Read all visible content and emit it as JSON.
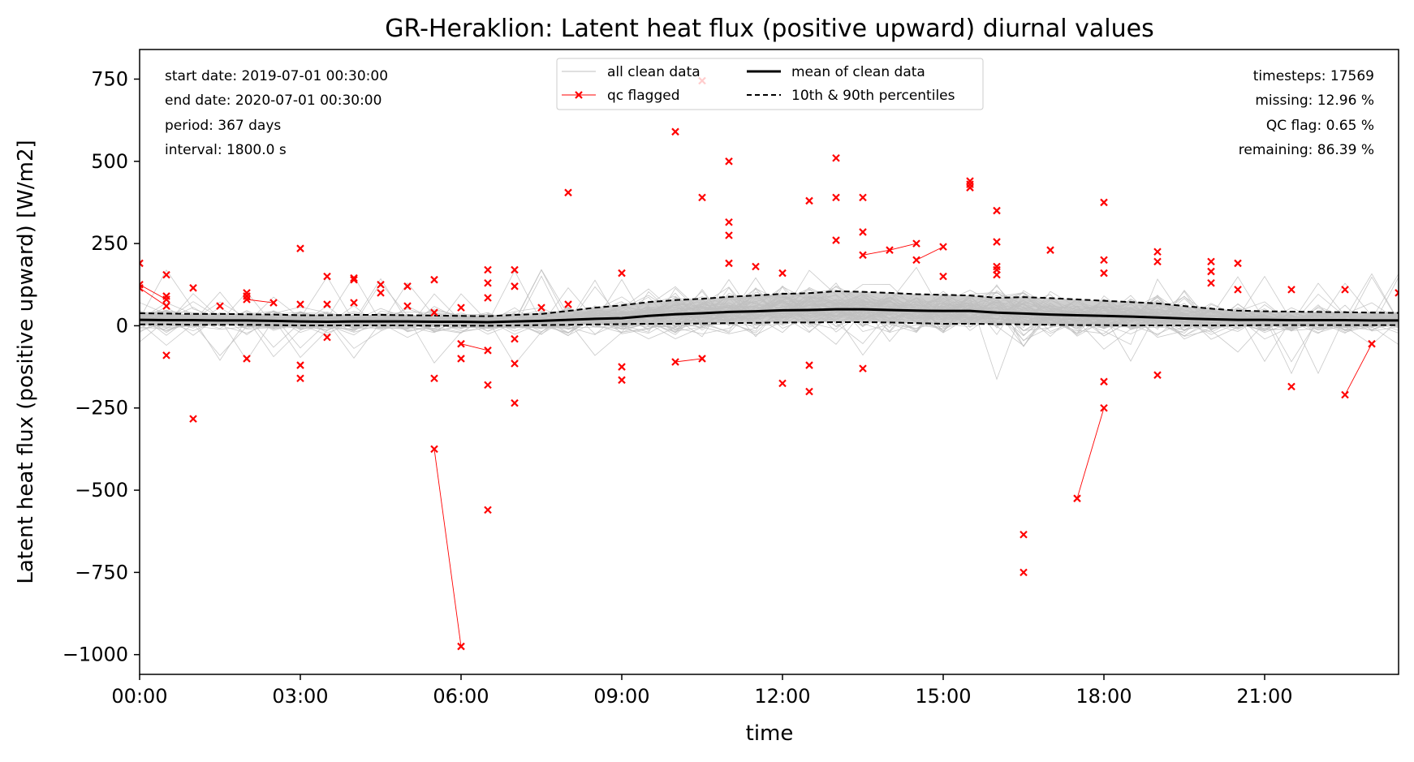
{
  "chart_data": {
    "type": "line",
    "title": "GR-Heraklion: Latent heat flux (positive upward) diurnal values",
    "xlabel": "time",
    "ylabel": "Latent heat flux (positive upward) [W/m2]",
    "xlim": [
      0,
      23.5
    ],
    "ylim": [
      -1060,
      840
    ],
    "x_ticks": [
      0,
      3,
      6,
      9,
      12,
      15,
      18,
      21
    ],
    "x_tick_labels": [
      "00:00",
      "03:00",
      "06:00",
      "09:00",
      "12:00",
      "15:00",
      "18:00",
      "21:00"
    ],
    "y_ticks": [
      750,
      500,
      250,
      0,
      -250,
      -500,
      -750,
      -1000
    ],
    "y_tick_labels": [
      "750",
      "500",
      "250",
      "0",
      "−250",
      "−500",
      "−750",
      "−1000"
    ],
    "grid": false,
    "legend_position": "top-center",
    "legend": {
      "clean": "all clean data",
      "flag": "qc flagged",
      "mean": "mean of clean data",
      "pct": "10th & 90th percentiles"
    },
    "info_left": [
      "start date: 2019-07-01 00:30:00",
      "end date: 2020-07-01 00:30:00",
      "period: 367 days",
      "interval: 1800.0 s"
    ],
    "info_right": [
      "timesteps: 17569",
      "missing: 12.96 %",
      "QC flag: 0.65 %",
      "remaining: 86.39 %"
    ],
    "colors": {
      "clean": "#bfbfbf",
      "flag": "#ff0000",
      "mean": "#000000",
      "pct": "#000000",
      "band": "#bfbfbf"
    },
    "x": [
      0,
      0.5,
      1,
      1.5,
      2,
      2.5,
      3,
      3.5,
      4,
      4.5,
      5,
      5.5,
      6,
      6.5,
      7,
      7.5,
      8,
      8.5,
      9,
      9.5,
      10,
      10.5,
      11,
      11.5,
      12,
      12.5,
      13,
      13.5,
      14,
      14.5,
      15,
      15.5,
      16,
      16.5,
      17,
      17.5,
      18,
      18.5,
      19,
      19.5,
      20,
      20.5,
      21,
      21.5,
      22,
      22.5,
      23,
      23.5
    ],
    "series": [
      {
        "name": "mean of clean data",
        "style": "solid",
        "values": [
          18,
          17,
          17,
          16,
          16,
          15,
          13,
          12,
          13,
          13,
          13,
          12,
          12,
          11,
          13,
          15,
          18,
          21,
          23,
          30,
          35,
          38,
          42,
          44,
          47,
          48,
          50,
          50,
          48,
          46,
          45,
          45,
          40,
          37,
          34,
          32,
          30,
          28,
          25,
          22,
          20,
          18,
          18,
          17,
          17,
          17,
          16,
          16
        ]
      },
      {
        "name": "90th percentile",
        "style": "dashed",
        "values": [
          38,
          37,
          36,
          36,
          35,
          34,
          32,
          32,
          33,
          33,
          32,
          31,
          30,
          29,
          33,
          36,
          45,
          55,
          62,
          72,
          78,
          82,
          88,
          92,
          97,
          99,
          105,
          103,
          100,
          96,
          94,
          92,
          85,
          87,
          84,
          80,
          76,
          72,
          68,
          60,
          52,
          46,
          44,
          43,
          42,
          41,
          40,
          39
        ]
      },
      {
        "name": "10th percentile",
        "style": "dashed",
        "values": [
          4,
          4,
          3,
          3,
          3,
          2,
          1,
          1,
          1,
          1,
          1,
          0,
          0,
          0,
          1,
          2,
          3,
          4,
          5,
          6,
          6,
          7,
          8,
          9,
          10,
          10,
          11,
          11,
          10,
          8,
          6,
          6,
          5,
          4,
          3,
          2,
          2,
          1,
          1,
          1,
          1,
          1,
          2,
          2,
          2,
          2,
          2,
          2
        ]
      }
    ],
    "qc_flagged_points": [
      [
        0,
        190
      ],
      [
        0,
        125
      ],
      [
        0,
        115
      ],
      [
        0.5,
        155
      ],
      [
        0.5,
        90
      ],
      [
        0.5,
        80
      ],
      [
        0.5,
        60
      ],
      [
        0.5,
        -90
      ],
      [
        1,
        115
      ],
      [
        1,
        -283
      ],
      [
        1.5,
        60
      ],
      [
        2,
        100
      ],
      [
        2,
        90
      ],
      [
        2,
        80
      ],
      [
        2,
        -100
      ],
      [
        2.5,
        70
      ],
      [
        3,
        235
      ],
      [
        3,
        65
      ],
      [
        3,
        -120
      ],
      [
        3,
        -160
      ],
      [
        3.5,
        150
      ],
      [
        3.5,
        65
      ],
      [
        3.5,
        -35
      ],
      [
        4,
        145
      ],
      [
        4,
        140
      ],
      [
        4,
        70
      ],
      [
        4.5,
        125
      ],
      [
        4.5,
        100
      ],
      [
        5,
        120
      ],
      [
        5,
        60
      ],
      [
        5.5,
        140
      ],
      [
        5.5,
        40
      ],
      [
        5.5,
        -160
      ],
      [
        5.5,
        -375
      ],
      [
        6,
        55
      ],
      [
        6,
        -55
      ],
      [
        6,
        -100
      ],
      [
        6,
        -975
      ],
      [
        6.5,
        170
      ],
      [
        6.5,
        130
      ],
      [
        6.5,
        85
      ],
      [
        6.5,
        -75
      ],
      [
        6.5,
        -180
      ],
      [
        6.5,
        -560
      ],
      [
        7,
        170
      ],
      [
        7,
        120
      ],
      [
        7,
        -40
      ],
      [
        7,
        -115
      ],
      [
        7,
        -235
      ],
      [
        7.5,
        55
      ],
      [
        8,
        405
      ],
      [
        8,
        65
      ],
      [
        9,
        160
      ],
      [
        9,
        -125
      ],
      [
        9,
        -165
      ],
      [
        10,
        590
      ],
      [
        10,
        -110
      ],
      [
        10.5,
        745
      ],
      [
        10.5,
        390
      ],
      [
        10.5,
        -100
      ],
      [
        11,
        500
      ],
      [
        11,
        315
      ],
      [
        11,
        275
      ],
      [
        11,
        190
      ],
      [
        11.5,
        180
      ],
      [
        12,
        160
      ],
      [
        12,
        -175
      ],
      [
        12.5,
        380
      ],
      [
        12.5,
        -120
      ],
      [
        12.5,
        -200
      ],
      [
        13,
        510
      ],
      [
        13,
        390
      ],
      [
        13,
        260
      ],
      [
        13.5,
        390
      ],
      [
        13.5,
        285
      ],
      [
        13.5,
        215
      ],
      [
        13.5,
        -130
      ],
      [
        14,
        230
      ],
      [
        14.5,
        250
      ],
      [
        14.5,
        200
      ],
      [
        15,
        240
      ],
      [
        15,
        150
      ],
      [
        15.5,
        440
      ],
      [
        15.5,
        430
      ],
      [
        15.5,
        420
      ],
      [
        16,
        350
      ],
      [
        16,
        255
      ],
      [
        16,
        180
      ],
      [
        16,
        170
      ],
      [
        16,
        155
      ],
      [
        16.5,
        -635
      ],
      [
        16.5,
        -750
      ],
      [
        17,
        230
      ],
      [
        17.5,
        -525
      ],
      [
        18,
        375
      ],
      [
        18,
        200
      ],
      [
        18,
        160
      ],
      [
        18,
        -170
      ],
      [
        18,
        -250
      ],
      [
        19,
        225
      ],
      [
        19,
        195
      ],
      [
        19,
        -150
      ],
      [
        20,
        195
      ],
      [
        20,
        165
      ],
      [
        20,
        130
      ],
      [
        20.5,
        190
      ],
      [
        20.5,
        110
      ],
      [
        21.5,
        110
      ],
      [
        21.5,
        -185
      ],
      [
        22.5,
        110
      ],
      [
        22.5,
        -210
      ],
      [
        23,
        -55
      ],
      [
        23.5,
        100
      ]
    ],
    "qc_flagged_connections": [
      [
        [
          0,
          125
        ],
        [
          0.5,
          80
        ]
      ],
      [
        [
          0,
          115
        ],
        [
          0.5,
          60
        ]
      ],
      [
        [
          2,
          80
        ],
        [
          2.5,
          70
        ]
      ],
      [
        [
          5.5,
          -375
        ],
        [
          6,
          -975
        ]
      ],
      [
        [
          6,
          -55
        ],
        [
          6.5,
          -75
        ]
      ],
      [
        [
          10,
          -110
        ],
        [
          10.5,
          -100
        ]
      ],
      [
        [
          13.5,
          215
        ],
        [
          14,
          230
        ]
      ],
      [
        [
          14,
          230
        ],
        [
          14.5,
          250
        ]
      ],
      [
        [
          14.5,
          200
        ],
        [
          15,
          240
        ]
      ],
      [
        [
          17.5,
          -525
        ],
        [
          18,
          -250
        ]
      ],
      [
        [
          22.5,
          -210
        ],
        [
          23,
          -55
        ]
      ]
    ]
  }
}
